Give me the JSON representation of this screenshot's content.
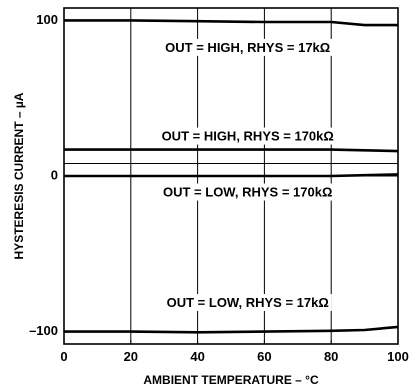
{
  "chart_data": {
    "type": "line",
    "title": "",
    "xlabel": "AMBIENT TEMPERATURE – °C",
    "ylabel": "HYSTERESIS CURRENT – µA",
    "xlim": [
      0,
      100
    ],
    "ylim": [
      -108,
      108
    ],
    "x_ticks": [
      "0",
      "20",
      "40",
      "60",
      "80",
      "100"
    ],
    "y_ticks": [
      {
        "value": 100,
        "label": "100"
      },
      {
        "value": 0,
        "label": "0"
      },
      {
        "value": -100,
        "label": "–100"
      }
    ],
    "grid": "vertical lines at 20, 40, 60, 80; horizontal reference lines at 0 and about 8",
    "series": [
      {
        "x": [
          0,
          20,
          40,
          60,
          80,
          90,
          100
        ],
        "y": [
          100,
          100,
          99.5,
          99,
          99,
          97,
          97
        ]
      },
      {
        "x": [
          0,
          20,
          40,
          60,
          80,
          90,
          100
        ],
        "y": [
          17,
          17,
          17,
          17,
          17,
          16.5,
          16
        ]
      },
      {
        "x": [
          0,
          20,
          40,
          60,
          80,
          90,
          100
        ],
        "y": [
          0,
          0,
          0,
          0,
          0,
          0.5,
          1
        ]
      },
      {
        "x": [
          0,
          20,
          40,
          60,
          80,
          90,
          100
        ],
        "y": [
          -100,
          -100,
          -100.5,
          -100,
          -99.5,
          -99,
          -97
        ]
      }
    ],
    "reference_lines": [
      0,
      8
    ],
    "annotations": [
      {
        "text": "OUT = HIGH, RHYS = 17kΩ",
        "x": 55,
        "y": 82
      },
      {
        "text": "OUT = HIGH, RHYS = 170kΩ",
        "x": 55,
        "y": 25
      },
      {
        "text": "OUT = LOW, RHYS = 170kΩ",
        "x": 55,
        "y": -11
      },
      {
        "text": "OUT = LOW, RHYS = 17kΩ",
        "x": 55,
        "y": -82
      }
    ]
  }
}
